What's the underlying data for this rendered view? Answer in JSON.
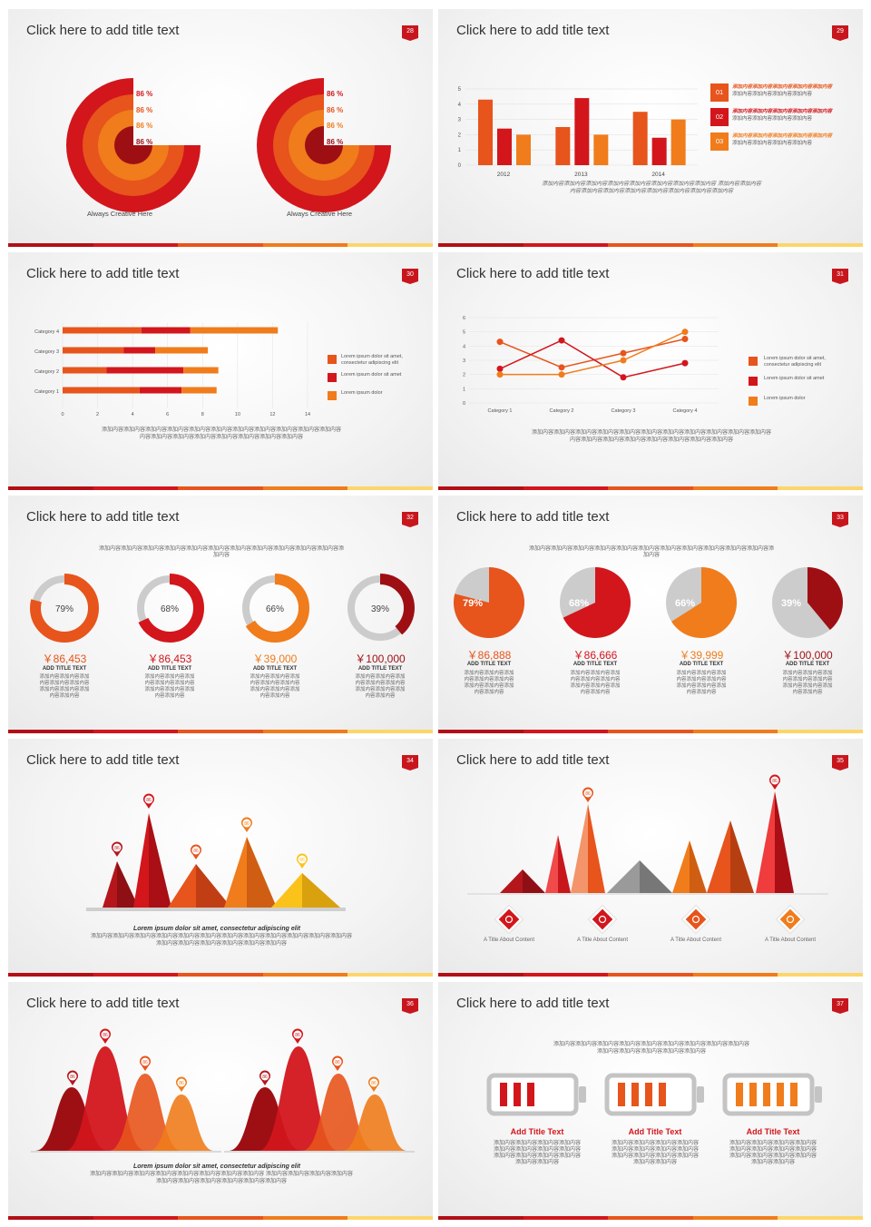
{
  "colors": {
    "red": "#d2161c",
    "orange": "#f07c1c",
    "deep": "#9e0f14",
    "mid": "#e7541c",
    "light": "#fbb040",
    "gray": "#cccccc",
    "yellow": "#fdd56a"
  },
  "slides": [
    {
      "title": "Click here to add title text",
      "num": "28"
    },
    {
      "title": "Click here to add title text",
      "num": "29"
    },
    {
      "title": "Click here to add title text",
      "num": "30"
    },
    {
      "title": "Click here to add title text",
      "num": "31"
    },
    {
      "title": "Click here to add title text",
      "num": "32"
    },
    {
      "title": "Click here to add title text",
      "num": "33"
    },
    {
      "title": "Click here to add title text",
      "num": "34"
    },
    {
      "title": "Click here to add title text",
      "num": "35"
    },
    {
      "title": "Click here to add title text",
      "num": "36"
    },
    {
      "title": "Click here to add title text",
      "num": "37"
    }
  ],
  "chart_data": [
    {
      "type": "pie",
      "title": "",
      "series": [
        {
          "name": "",
          "values": [
            86,
            86,
            86,
            86
          ]
        },
        {
          "name": "",
          "values": [
            86,
            86,
            86,
            86
          ]
        }
      ],
      "labels": [
        "86 %",
        "86 %",
        "86 %",
        "86 %"
      ],
      "captions": [
        "Always Creative Here",
        "Always Creative Here"
      ]
    },
    {
      "type": "bar",
      "categories": [
        "2012",
        "2013",
        "2014"
      ],
      "series": [
        {
          "name": "",
          "values": [
            4.3,
            2.5,
            3.5
          ]
        },
        {
          "name": "",
          "values": [
            2.4,
            4.4,
            1.8
          ]
        },
        {
          "name": "",
          "values": [
            2,
            2,
            3
          ]
        }
      ],
      "ylim": [
        0,
        5
      ],
      "yticks": [
        "0",
        "1",
        "2",
        "3",
        "4",
        "5"
      ],
      "legend": [
        {
          "num": "01",
          "text_hi": "添加内容添加内容添加内容添加内容添加内容",
          "text": "添加内容添加内容添加内容添加内容"
        },
        {
          "num": "02",
          "text_hi": "添加内容添加内容添加内容添加内容添加内容",
          "text": "添加内容添加内容添加内容添加内容"
        },
        {
          "num": "03",
          "text_hi": "添加内容添加内容添加内容添加内容添加内容",
          "text": "添加内容添加内容添加内容添加内容"
        }
      ],
      "caption_1": "添加内容添加内容添加内容添加内容添加内容添加内容添加内容添加内容 添加内容添加内容",
      "caption_2": "内容添加内容添加内容添加内容添加内容添加内容添加内容添加内容"
    },
    {
      "type": "bar",
      "categories": [
        "Category 4",
        "Category 3",
        "Category 2",
        "Category 1"
      ],
      "series": [
        {
          "name": "Lorem ipsum dolor sit amet, consectetur adipiscing elit",
          "values": [
            4.5,
            3.5,
            2.5,
            4.4
          ]
        },
        {
          "name": "Lorem ipsum dolor sit amet",
          "values": [
            2.8,
            1.8,
            4.4,
            2.4
          ]
        },
        {
          "name": "Lorem ipsum dolor",
          "values": [
            5.0,
            3.0,
            2.0,
            2.0
          ]
        }
      ],
      "xticks": [
        "0",
        "2",
        "4",
        "6",
        "8",
        "10",
        "12",
        "14"
      ],
      "xlim": [
        0,
        14
      ],
      "caption_1": "添加内容添加内容添加内容添加内容添加内容添加内容添加内容添加内容添加内容添加内容添加内容",
      "caption_2": "内容添加内容添加内容添加内容添加内容添加内容添加内容添加内容"
    },
    {
      "type": "line",
      "categories": [
        "Category 1",
        "Category 2",
        "Category 3",
        "Category 4"
      ],
      "series": [
        {
          "name": "Lorem ipsum dolor sit amet, consectetur adipiscing elit",
          "values": [
            4.3,
            2.5,
            3.5,
            4.5
          ]
        },
        {
          "name": "Lorem ipsum dolor sit amet",
          "values": [
            2.4,
            4.4,
            1.8,
            2.8
          ]
        },
        {
          "name": "Lorem ipsum dolor",
          "values": [
            2,
            2,
            3,
            5
          ]
        }
      ],
      "ylim": [
        0,
        6
      ],
      "yticks": [
        "0",
        "1",
        "2",
        "3",
        "4",
        "5",
        "6"
      ],
      "caption_1": "添加内容添加内容添加内容添加内容添加内容添加内容添加内容添加内容添加内容添加内容添加内容",
      "caption_2": "内容添加内容添加内容添加内容添加内容添加内容添加内容添加内容"
    },
    {
      "type": "pie",
      "variant": "donut",
      "values": [
        79,
        68,
        66,
        39
      ],
      "labels": [
        "79%",
        "68%",
        "66%",
        "39%"
      ],
      "money": [
        "￥86,453",
        "￥86,453",
        "￥39,000",
        "￥100,000"
      ],
      "sub": "ADD TITLE TEXT",
      "desc": "添加内容添加内容添加内容添加内容添加内容添加内容添加内容添加内容添加内容",
      "top": "添加内容添加内容添加内容添加内容添加内容添加内容添加内容添加内容添加内容添加内容添加内容添加内容"
    },
    {
      "type": "pie",
      "values": [
        79,
        68,
        66,
        39
      ],
      "labels": [
        "79%",
        "68%",
        "66%",
        "39%"
      ],
      "money": [
        "￥86,888",
        "￥86,666",
        "￥39,999",
        "￥100,000"
      ],
      "sub": "ADD TITLE TEXT",
      "desc": "添加内容添加内容添加内容添加内容添加内容添加内容添加内容添加内容添加内容",
      "top": "添加内容添加内容添加内容添加内容添加内容添加内容添加内容添加内容添加内容添加内容添加内容添加内容"
    },
    {
      "type": "area",
      "values": [
        86,
        86,
        86,
        86,
        86
      ],
      "labels": [
        "86",
        "86",
        "86",
        "86",
        "86"
      ],
      "caption_b": "Lorem ipsum dolor sit amet, consectetur adipiscing elit",
      "caption_1": "添加内容添加内容添加内容添加内容添加内容添加内容添加内容添加内容添加内容添加内容添加内容添加内容",
      "caption_2": "添加内容添加内容添加内容添加内容添加内容添加内容"
    },
    {
      "type": "area",
      "labels": [
        "86",
        "86"
      ],
      "items": [
        "A Title About Content",
        "A Title About Content",
        "A Title About Content",
        "A Title About Content"
      ]
    },
    {
      "type": "area",
      "labels": [
        "86",
        "86",
        "86",
        "86",
        "86",
        "86",
        "86",
        "86"
      ],
      "caption_b": "Lorem ipsum dolor sit amet, consectetur adipiscing elit",
      "caption_1": "添加内容添加内容添加内容添加内容添加内容添加内容添加内容添加内容 添加内容添加内容添加内容添加内容",
      "caption_2": "添加内容添加内容添加内容添加内容添加内容添加内容"
    },
    {
      "type": "bar",
      "values": [
        3,
        4,
        5
      ],
      "top_1": "添加内容添加内容添加内容添加内容添加内容添加内容添加内容添加内容添加内容",
      "top_2": "添加内容添加内容添加内容添加内容添加内容",
      "titles": [
        "Add Title Text",
        "Add Title Text",
        "Add Title Text"
      ],
      "desc": "添加内容添加内容添加内容添加内容添加内容添加内容添加内容添加内容添加内容添加内容添加内容添加内容添加内容添加内容"
    }
  ]
}
